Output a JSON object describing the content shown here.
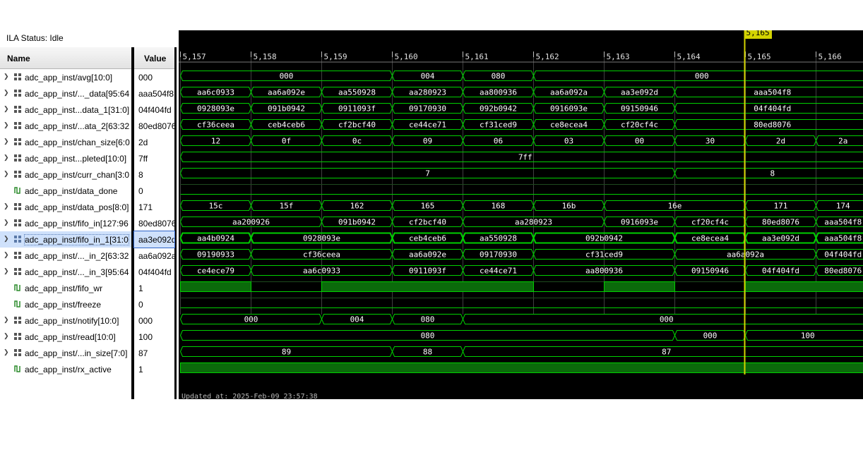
{
  "ila_status": "ILA Status: Idle",
  "columns": {
    "name": "Name",
    "value": "Value"
  },
  "colors": {
    "wave": "#00d000",
    "grid": "#404040",
    "cursor": "#d3d300",
    "text": "#ffffff"
  },
  "timeline": {
    "ticks": [
      "5,157",
      "5,158",
      "5,159",
      "5,160",
      "5,161",
      "5,162",
      "5,163",
      "5,164",
      "5,165",
      "5,166"
    ],
    "cursor_label": "5,165",
    "cursor_time": 5164.99
  },
  "updated": "Updated at: 2025-Feb-09 23:57:38",
  "signals": [
    {
      "name": "adc_app_inst/avg[10:0]",
      "value": "000",
      "kind": "bus",
      "icon": "bus-icon",
      "segs": [
        [
          5157,
          "000"
        ],
        [
          5160,
          "004"
        ],
        [
          5161,
          "080"
        ],
        [
          5162,
          "000"
        ]
      ]
    },
    {
      "name": "adc_app_inst/..._data[95:64",
      "value": "aaa504f8",
      "kind": "bus",
      "icon": "bus-icon",
      "segs": [
        [
          5157,
          "aa6c0933"
        ],
        [
          5158,
          "aa6a092e"
        ],
        [
          5159,
          "aa550928"
        ],
        [
          5160,
          "aa280923"
        ],
        [
          5161,
          "aa800936"
        ],
        [
          5162,
          "aa6a092a"
        ],
        [
          5163,
          "aa3e092d"
        ],
        [
          5164,
          "aaa504f8"
        ]
      ]
    },
    {
      "name": "adc_app_inst...data_1[31:0]",
      "value": "04f404fd",
      "kind": "bus",
      "icon": "bus-icon",
      "segs": [
        [
          5157,
          "0928093e"
        ],
        [
          5158,
          "091b0942"
        ],
        [
          5159,
          "0911093f"
        ],
        [
          5160,
          "09170930"
        ],
        [
          5161,
          "092b0942"
        ],
        [
          5162,
          "0916093e"
        ],
        [
          5163,
          "09150946"
        ],
        [
          5164,
          "04f404fd"
        ]
      ]
    },
    {
      "name": "adc_app_inst/...ata_2[63:32",
      "value": "80ed8076",
      "kind": "bus",
      "icon": "bus-icon",
      "segs": [
        [
          5157,
          "cf36ceea"
        ],
        [
          5158,
          "ceb4ceb6"
        ],
        [
          5159,
          "cf2bcf40"
        ],
        [
          5160,
          "ce44ce71"
        ],
        [
          5161,
          "cf31ced9"
        ],
        [
          5162,
          "ce8ecea4"
        ],
        [
          5163,
          "cf20cf4c"
        ],
        [
          5164,
          "80ed8076"
        ]
      ]
    },
    {
      "name": "adc_app_inst/chan_size[6:0",
      "value": "2d",
      "kind": "bus",
      "icon": "bus-icon",
      "segs": [
        [
          5157,
          "12"
        ],
        [
          5158,
          "0f"
        ],
        [
          5159,
          "0c"
        ],
        [
          5160,
          "09"
        ],
        [
          5161,
          "06"
        ],
        [
          5162,
          "03"
        ],
        [
          5163,
          "00"
        ],
        [
          5164,
          "30"
        ],
        [
          5165,
          "2d"
        ],
        [
          5166,
          "2a"
        ]
      ]
    },
    {
      "name": "adc_app_inst...pleted[10:0]",
      "value": "7ff",
      "kind": "bus",
      "icon": "bus-icon",
      "segs": [
        [
          5157,
          "7ff"
        ]
      ]
    },
    {
      "name": "adc_app_inst/curr_chan[3:0",
      "value": "8",
      "kind": "bus",
      "icon": "bus-icon",
      "segs": [
        [
          5157,
          "7"
        ],
        [
          5164,
          "8"
        ]
      ]
    },
    {
      "name": "adc_app_inst/data_done",
      "value": "0",
      "kind": "bit",
      "icon": "bit-icon",
      "levels": [
        [
          5157,
          0
        ]
      ]
    },
    {
      "name": "adc_app_inst/data_pos[8:0]",
      "value": "171",
      "kind": "bus",
      "icon": "bus-icon",
      "segs": [
        [
          5157,
          "15c"
        ],
        [
          5158,
          "15f"
        ],
        [
          5159,
          "162"
        ],
        [
          5160,
          "165"
        ],
        [
          5161,
          "168"
        ],
        [
          5162,
          "16b"
        ],
        [
          5163,
          "16e"
        ],
        [
          5165,
          "171"
        ],
        [
          5166,
          "174"
        ]
      ]
    },
    {
      "name": "adc_app_inst/fifo_in[127:96",
      "value": "80ed8076",
      "kind": "bus",
      "icon": "bus-icon",
      "segs": [
        [
          5157,
          "aa200926"
        ],
        [
          5159,
          "091b0942"
        ],
        [
          5160,
          "cf2bcf40"
        ],
        [
          5161,
          "aa280923"
        ],
        [
          5163,
          "0916093e"
        ],
        [
          5164,
          "cf20cf4c"
        ],
        [
          5165,
          "80ed8076"
        ],
        [
          5166,
          "aaa504f8"
        ]
      ]
    },
    {
      "name": "adc_app_inst/fifo_in_1[31:0",
      "value": "aa3e092d",
      "kind": "bus",
      "icon": "bus-sel-icon",
      "selected": true,
      "segs": [
        [
          5157,
          "aa4b0924"
        ],
        [
          5158,
          "0928093e"
        ],
        [
          5160,
          "ceb4ceb6"
        ],
        [
          5161,
          "aa550928"
        ],
        [
          5162,
          "092b0942"
        ],
        [
          5164,
          "ce8ecea4"
        ],
        [
          5165,
          "aa3e092d"
        ],
        [
          5166,
          "aaa504f8"
        ]
      ]
    },
    {
      "name": "adc_app_inst/..._in_2[63:32",
      "value": "aa6a092a",
      "kind": "bus",
      "icon": "bus-icon",
      "segs": [
        [
          5157,
          "09190933"
        ],
        [
          5158,
          "cf36ceea"
        ],
        [
          5160,
          "aa6a092e"
        ],
        [
          5161,
          "09170930"
        ],
        [
          5162,
          "cf31ced9"
        ],
        [
          5164,
          "aa6a092a"
        ],
        [
          5166,
          "04f404fd"
        ]
      ]
    },
    {
      "name": "adc_app_inst/..._in_3[95:64",
      "value": "04f404fd",
      "kind": "bus",
      "icon": "bus-icon",
      "segs": [
        [
          5157,
          "ce4ece79"
        ],
        [
          5158,
          "aa6c0933"
        ],
        [
          5160,
          "0911093f"
        ],
        [
          5161,
          "ce44ce71"
        ],
        [
          5162,
          "aa800936"
        ],
        [
          5164,
          "09150946"
        ],
        [
          5165,
          "04f404fd"
        ],
        [
          5166,
          "80ed8076"
        ]
      ]
    },
    {
      "name": "adc_app_inst/fifo_wr",
      "value": "1",
      "kind": "bit",
      "icon": "bit-icon",
      "levels": [
        [
          5157,
          1
        ],
        [
          5158,
          0
        ],
        [
          5159,
          1
        ],
        [
          5162,
          0
        ],
        [
          5163,
          1
        ],
        [
          5164,
          0
        ],
        [
          5165,
          1
        ]
      ]
    },
    {
      "name": "adc_app_inst/freeze",
      "value": "0",
      "kind": "bit",
      "icon": "bit-icon",
      "levels": [
        [
          5157,
          0
        ]
      ]
    },
    {
      "name": "adc_app_inst/notify[10:0]",
      "value": "000",
      "kind": "bus",
      "icon": "bus-icon",
      "segs": [
        [
          5157,
          "000"
        ],
        [
          5159,
          "004"
        ],
        [
          5160,
          "080"
        ],
        [
          5161,
          "000"
        ]
      ]
    },
    {
      "name": "adc_app_inst/read[10:0]",
      "value": "100",
      "kind": "bus",
      "icon": "bus-icon",
      "segs": [
        [
          5157,
          "080"
        ],
        [
          5164,
          "000"
        ],
        [
          5165,
          "100"
        ]
      ]
    },
    {
      "name": "adc_app_inst/...in_size[7:0]",
      "value": "87",
      "kind": "bus",
      "icon": "bus-icon",
      "segs": [
        [
          5157,
          "89"
        ],
        [
          5160,
          "88"
        ],
        [
          5161,
          "87"
        ]
      ]
    },
    {
      "name": "adc_app_inst/rx_active",
      "value": "1",
      "kind": "bit",
      "icon": "bit-icon",
      "levels": [
        [
          5157,
          1
        ]
      ]
    }
  ]
}
